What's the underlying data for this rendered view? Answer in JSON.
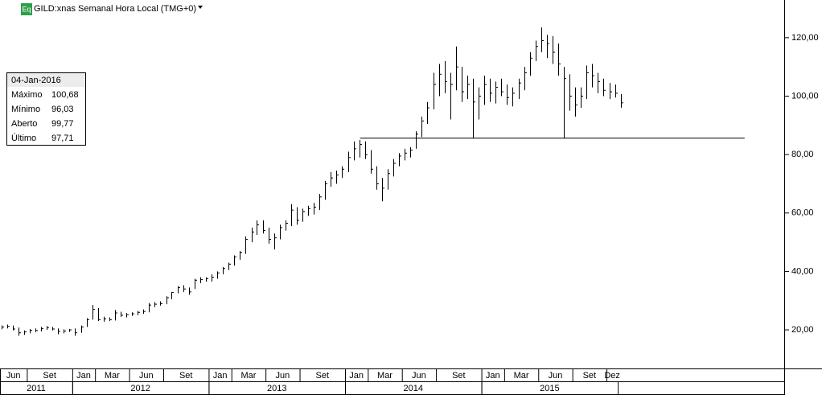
{
  "header": {
    "icon": "Eq",
    "title": "GILD:xnas Semanal Hora Local (TMG+0)"
  },
  "info_box": {
    "date": "04-Jan-2016",
    "rows": [
      [
        "Máximo",
        "100,68"
      ],
      [
        "Mínimo",
        "96,03"
      ],
      [
        "Aberto",
        "99,77"
      ],
      [
        "Último",
        "97,71"
      ]
    ]
  },
  "chart_data": {
    "type": "ohlc",
    "color": "#000000",
    "x": [
      2011.479,
      2011.521,
      2011.563,
      2011.604,
      2011.646,
      2011.688,
      2011.729,
      2011.771,
      2011.813,
      2011.854,
      2011.896,
      2011.938,
      2011.979,
      2012.021,
      2012.063,
      2012.104,
      2012.146,
      2012.188,
      2012.229,
      2012.271,
      2012.313,
      2012.354,
      2012.396,
      2012.438,
      2012.479,
      2012.521,
      2012.563,
      2012.604,
      2012.646,
      2012.688,
      2012.729,
      2012.771,
      2012.813,
      2012.854,
      2012.896,
      2012.938,
      2012.979,
      2013.021,
      2013.063,
      2013.104,
      2013.146,
      2013.188,
      2013.229,
      2013.271,
      2013.313,
      2013.354,
      2013.396,
      2013.438,
      2013.479,
      2013.521,
      2013.563,
      2013.604,
      2013.646,
      2013.688,
      2013.729,
      2013.771,
      2013.813,
      2013.854,
      2013.896,
      2013.938,
      2013.979,
      2014.021,
      2014.063,
      2014.104,
      2014.146,
      2014.188,
      2014.229,
      2014.271,
      2014.313,
      2014.354,
      2014.396,
      2014.438,
      2014.479,
      2014.521,
      2014.563,
      2014.604,
      2014.646,
      2014.688,
      2014.729,
      2014.771,
      2014.813,
      2014.854,
      2014.896,
      2014.938,
      2014.979,
      2015.021,
      2015.063,
      2015.104,
      2015.146,
      2015.188,
      2015.229,
      2015.271,
      2015.313,
      2015.354,
      2015.396,
      2015.438,
      2015.479,
      2015.521,
      2015.563,
      2015.604,
      2015.646,
      2015.688,
      2015.729,
      2015.771,
      2015.813,
      2015.854,
      2015.896,
      2015.938,
      2015.979,
      2016.021
    ],
    "high": [
      21.5,
      21.8,
      21.5,
      20.8,
      19.8,
      20.3,
      20.5,
      21.0,
      21.3,
      21.0,
      20.5,
      20.2,
      20.3,
      20.5,
      21.5,
      24.0,
      28.5,
      27.5,
      24.5,
      24.3,
      26.8,
      26.2,
      25.8,
      26.0,
      26.5,
      27.0,
      29.2,
      29.5,
      29.8,
      31.5,
      33.0,
      35.0,
      35.3,
      34.5,
      37.5,
      38.0,
      38.0,
      39.0,
      40.0,
      41.5,
      43.0,
      45.5,
      47.0,
      52.0,
      55.0,
      57.5,
      57.5,
      55.0,
      53.0,
      56.0,
      57.5,
      63.0,
      62.0,
      61.5,
      62.5,
      63.5,
      66.5,
      71.0,
      74.0,
      74.5,
      76.0,
      81.0,
      84.5,
      85.0,
      84.5,
      81.5,
      76.0,
      72.0,
      75.0,
      78.5,
      80.5,
      82.0,
      82.5,
      88.0,
      93.0,
      98.0,
      108.0,
      111.0,
      112.0,
      108.0,
      117.0,
      110.0,
      107.0,
      106.0,
      103.0,
      107.0,
      106.0,
      105.0,
      106.0,
      104.0,
      103.0,
      106.0,
      110.0,
      115.0,
      119.0,
      123.5,
      121.0,
      120.5,
      118.0,
      110.0,
      107.5,
      103.0,
      103.0,
      110.5,
      111.0,
      108.0,
      106.0,
      104.5,
      104.0,
      100.68
    ],
    "low": [
      20.2,
      20.5,
      19.8,
      18.0,
      18.3,
      18.8,
      19.2,
      19.5,
      20.0,
      19.8,
      18.5,
      18.8,
      19.3,
      18.0,
      19.0,
      21.0,
      23.5,
      23.0,
      22.8,
      23.0,
      23.2,
      24.5,
      24.3,
      24.8,
      25.0,
      25.5,
      26.0,
      27.8,
      28.3,
      28.8,
      30.5,
      32.5,
      33.0,
      32.0,
      34.0,
      36.0,
      36.5,
      36.5,
      37.5,
      39.0,
      40.5,
      42.0,
      44.0,
      46.0,
      50.0,
      52.5,
      53.0,
      49.5,
      47.5,
      51.0,
      54.0,
      55.5,
      56.0,
      57.0,
      59.0,
      59.5,
      61.0,
      64.5,
      69.0,
      70.0,
      72.0,
      74.0,
      78.0,
      79.0,
      78.5,
      73.5,
      68.0,
      64.0,
      68.0,
      72.5,
      76.0,
      78.0,
      79.0,
      82.0,
      86.0,
      90.5,
      95.5,
      100.0,
      101.0,
      92.0,
      102.0,
      98.0,
      99.0,
      85.5,
      92.0,
      97.0,
      98.0,
      97.5,
      100.0,
      97.0,
      96.5,
      99.0,
      102.0,
      107.0,
      112.0,
      115.0,
      113.0,
      111.0,
      107.0,
      85.5,
      95.0,
      93.0,
      96.0,
      99.0,
      103.0,
      101.0,
      100.0,
      99.0,
      99.5,
      96.03
    ],
    "close": [
      21.0,
      21.2,
      20.3,
      19.0,
      19.3,
      19.8,
      19.8,
      20.4,
      20.8,
      20.3,
      19.5,
      19.6,
      20.0,
      19.0,
      21.0,
      23.5,
      27.0,
      23.5,
      23.8,
      23.5,
      25.8,
      25.0,
      25.2,
      25.5,
      26.0,
      26.3,
      28.5,
      28.8,
      29.0,
      31.0,
      32.8,
      34.5,
      34.0,
      33.0,
      37.0,
      37.2,
      37.5,
      38.0,
      39.5,
      41.0,
      42.5,
      45.0,
      46.5,
      51.0,
      53.5,
      56.0,
      54.0,
      51.0,
      51.5,
      55.0,
      56.5,
      61.0,
      57.5,
      60.5,
      61.5,
      62.0,
      65.5,
      70.0,
      72.0,
      73.0,
      75.0,
      79.0,
      82.0,
      83.5,
      80.0,
      75.0,
      70.0,
      68.5,
      73.5,
      77.0,
      79.5,
      80.5,
      81.5,
      87.0,
      91.5,
      96.0,
      104.0,
      107.5,
      105.0,
      104.0,
      110.0,
      101.5,
      104.0,
      98.0,
      100.0,
      104.0,
      101.0,
      103.0,
      101.5,
      99.5,
      101.0,
      104.5,
      108.0,
      113.0,
      117.0,
      119.0,
      118.0,
      115.0,
      111.0,
      106.0,
      100.0,
      97.0,
      100.0,
      108.0,
      107.0,
      105.0,
      102.0,
      101.5,
      101.0,
      97.71
    ],
    "xlim": [
      2011.47,
      2017.22
    ],
    "ylim": [
      6.8,
      132.9
    ],
    "yticks": [
      {
        "value": 20,
        "label": "20,00"
      },
      {
        "value": 40,
        "label": "40,00"
      },
      {
        "value": 60,
        "label": "60,00"
      },
      {
        "value": 80,
        "label": "80,00"
      },
      {
        "value": 100,
        "label": "100,00"
      },
      {
        "value": 120,
        "label": "120,00"
      }
    ],
    "xticks": [
      {
        "value": 2011.417,
        "label": "Jun"
      },
      {
        "value": 2011.667,
        "label": "Set"
      },
      {
        "value": 2012.0,
        "label": "Jan"
      },
      {
        "value": 2012.167,
        "label": "Mar"
      },
      {
        "value": 2012.417,
        "label": "Jun"
      },
      {
        "value": 2012.667,
        "label": "Set"
      },
      {
        "value": 2013.0,
        "label": "Jan"
      },
      {
        "value": 2013.167,
        "label": "Mar"
      },
      {
        "value": 2013.417,
        "label": "Jun"
      },
      {
        "value": 2013.667,
        "label": "Set"
      },
      {
        "value": 2014.0,
        "label": "Jan"
      },
      {
        "value": 2014.167,
        "label": "Mar"
      },
      {
        "value": 2014.417,
        "label": "Jun"
      },
      {
        "value": 2014.667,
        "label": "Set"
      },
      {
        "value": 2015.0,
        "label": "Jan"
      },
      {
        "value": 2015.167,
        "label": "Mar"
      },
      {
        "value": 2015.417,
        "label": "Jun"
      },
      {
        "value": 2015.667,
        "label": "Set"
      },
      {
        "value": 2015.917,
        "label": "Dez"
      }
    ],
    "year_ticks": [
      2011,
      2012,
      2013,
      2014,
      2015
    ],
    "hline": {
      "value": 85.6,
      "x": [
        2014.11,
        2016.93
      ]
    }
  }
}
